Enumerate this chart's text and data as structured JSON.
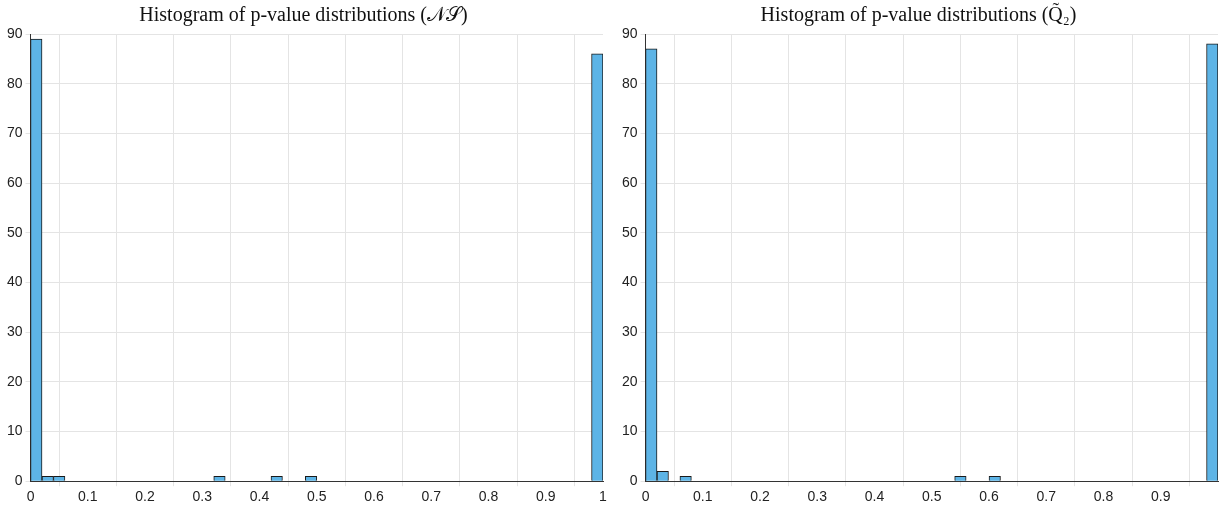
{
  "chart_data": [
    {
      "type": "histogram",
      "title": "Histogram of p-value distributions (𝒩𝒮)",
      "color": "#5db4e6",
      "grid": true,
      "bins": [
        0,
        0.02,
        0.04,
        0.06,
        0.08,
        0.1,
        0.12,
        0.14,
        0.16,
        0.18,
        0.2,
        0.22,
        0.24,
        0.26,
        0.28,
        0.3,
        0.32,
        0.34,
        0.36,
        0.38,
        0.4,
        0.42,
        0.44,
        0.46,
        0.48,
        0.5,
        0.52,
        0.54,
        0.56,
        0.58,
        0.6,
        0.62,
        0.64,
        0.66,
        0.68,
        0.7,
        0.72,
        0.74,
        0.76,
        0.78,
        0.8,
        0.82,
        0.84,
        0.86,
        0.88,
        0.9,
        0.92,
        0.94,
        0.96,
        0.98,
        1
      ],
      "values": [
        89,
        1,
        1,
        0,
        0,
        0,
        0,
        0,
        0,
        0,
        0,
        0,
        0,
        0,
        0,
        0,
        1,
        0,
        0,
        0,
        0,
        1,
        0,
        0,
        1,
        0,
        0,
        0,
        0,
        0,
        0,
        0,
        0,
        0,
        0,
        0,
        0,
        0,
        0,
        0,
        0,
        0,
        0,
        0,
        0,
        0,
        0,
        0,
        0,
        86
      ],
      "xlim": [
        0,
        1
      ],
      "xticks": [
        0,
        0.1,
        0.2,
        0.3,
        0.4,
        0.5,
        0.6,
        0.7,
        0.8,
        0.9,
        1
      ],
      "ylim": [
        0,
        90
      ],
      "yticks": [
        0,
        10,
        20,
        30,
        40,
        50,
        60,
        70,
        80,
        90
      ]
    },
    {
      "type": "histogram",
      "title": "Histogram of p-value distributions (Q̃₂)",
      "color": "#5db4e6",
      "grid": true,
      "bins": [
        0,
        0.02,
        0.04,
        0.06,
        0.08,
        0.1,
        0.12,
        0.14,
        0.16,
        0.18,
        0.2,
        0.22,
        0.24,
        0.26,
        0.28,
        0.3,
        0.32,
        0.34,
        0.36,
        0.38,
        0.4,
        0.42,
        0.44,
        0.46,
        0.48,
        0.5,
        0.52,
        0.54,
        0.56,
        0.58,
        0.6,
        0.62,
        0.64,
        0.66,
        0.68,
        0.7,
        0.72,
        0.74,
        0.76,
        0.78,
        0.8,
        0.82,
        0.84,
        0.86,
        0.88,
        0.9,
        0.92,
        0.94,
        0.96,
        0.98,
        1
      ],
      "values": [
        87,
        2,
        0,
        1,
        0,
        0,
        0,
        0,
        0,
        0,
        0,
        0,
        0,
        0,
        0,
        0,
        0,
        0,
        0,
        0,
        0,
        0,
        0,
        0,
        0,
        0,
        0,
        1,
        0,
        0,
        1,
        0,
        0,
        0,
        0,
        0,
        0,
        0,
        0,
        0,
        0,
        0,
        0,
        0,
        0,
        0,
        0,
        0,
        0,
        88
      ],
      "xlim": [
        0,
        1
      ],
      "xticks": [
        0,
        0.1,
        0.2,
        0.3,
        0.4,
        0.5,
        0.6,
        0.7,
        0.8,
        0.9
      ],
      "ylim": [
        0,
        90
      ],
      "yticks": [
        0,
        10,
        20,
        30,
        40,
        50,
        60,
        70,
        80,
        90
      ]
    }
  ]
}
